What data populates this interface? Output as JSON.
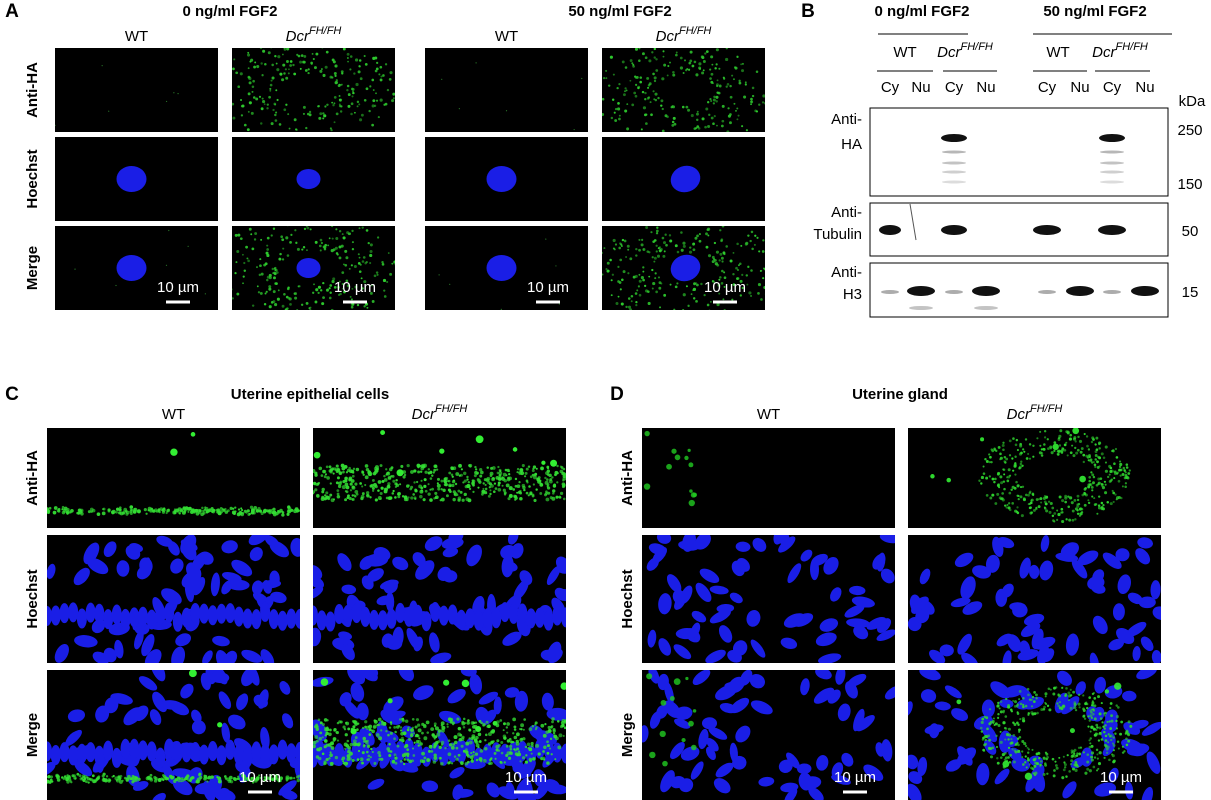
{
  "panel_a": {
    "label": "A",
    "conditions": [
      "0 ng/ml FGF2",
      "50 ng/ml FGF2"
    ],
    "genotypes": [
      "WT",
      {
        "base": "Dcr",
        "sup": "FH/FH"
      }
    ],
    "rows": [
      "Anti-HA",
      "Hoechst",
      "Merge"
    ],
    "scale_bar": "10 µm"
  },
  "panel_b": {
    "label": "B",
    "conditions": [
      "0 ng/ml FGF2",
      "50 ng/ml FGF2"
    ],
    "genotypes": [
      "WT",
      {
        "base": "Dcr",
        "sup": "FH/FH"
      }
    ],
    "fractions": [
      "Cy",
      "Nu"
    ],
    "unit": "kDa",
    "blots": [
      {
        "label": [
          "Anti-",
          "HA"
        ],
        "markers": [
          250,
          150
        ]
      },
      {
        "label": [
          "Anti-",
          "Tubulin"
        ],
        "markers": [
          50
        ]
      },
      {
        "label": [
          "Anti-",
          "H3"
        ],
        "markers": [
          15
        ]
      }
    ]
  },
  "panel_c": {
    "label": "C",
    "title": "Uterine epithelial cells",
    "genotypes": [
      "WT",
      {
        "base": "Dcr",
        "sup": "FH/FH"
      }
    ],
    "rows": [
      "Anti-HA",
      "Hoechst",
      "Merge"
    ],
    "scale_bar": "10 µm"
  },
  "panel_d": {
    "label": "D",
    "title": "Uterine gland",
    "genotypes": [
      "WT",
      {
        "base": "Dcr",
        "sup": "FH/FH"
      }
    ],
    "rows": [
      "Anti-HA",
      "Hoechst",
      "Merge"
    ],
    "scale_bar": "10 µm"
  }
}
